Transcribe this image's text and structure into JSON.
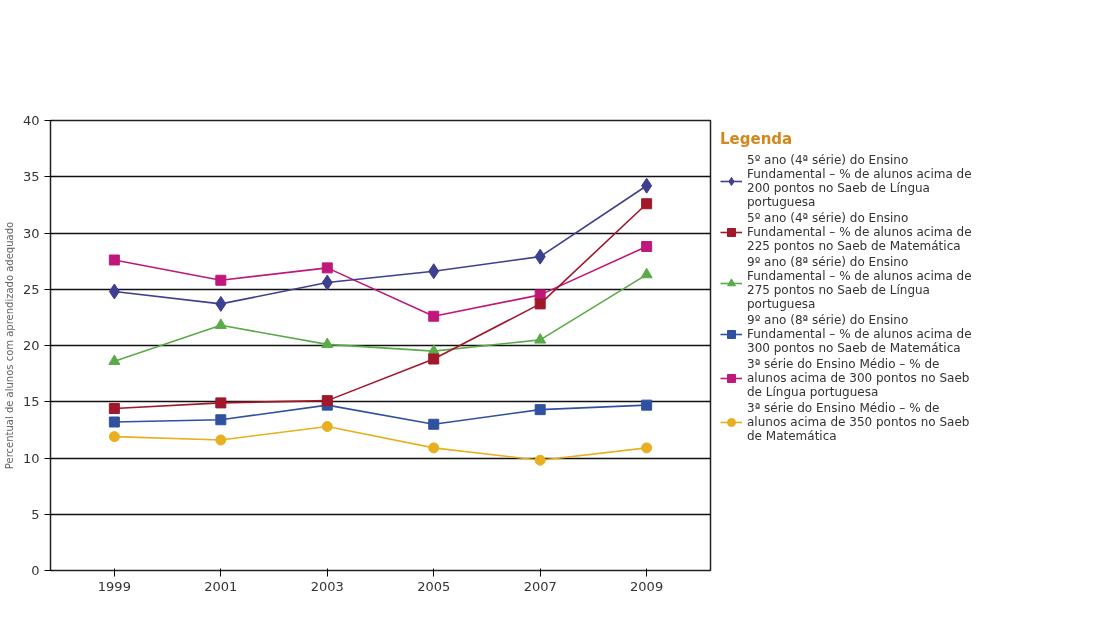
{
  "chart_data": {
    "type": "line",
    "ylabel": "Percentual de alunos com aprendizado adequado",
    "legend_title": "Legenda",
    "categories": [
      "1999",
      "2001",
      "2003",
      "2005",
      "2007",
      "2009"
    ],
    "ylim": [
      0,
      40
    ],
    "yticks": [
      0,
      5,
      10,
      15,
      20,
      25,
      30,
      35,
      40
    ],
    "grid": "y",
    "legend": "right",
    "series": [
      {
        "name": "5º ano (4ª série) do Ensino Fundamental – % de alunos acima de 200 pontos no Saeb de Língua portuguesa",
        "color": "#3f3f8f",
        "marker": "diamond",
        "values": [
          24.8,
          23.7,
          25.6,
          26.6,
          27.9,
          34.2
        ]
      },
      {
        "name": "5º ano (4ª série) do Ensino Fundamental – % de alunos acima de 225 pontos no Saeb de Matemática",
        "color": "#a0182a",
        "marker": "square",
        "values": [
          14.4,
          14.9,
          15.1,
          18.8,
          23.7,
          32.6
        ]
      },
      {
        "name": "9º ano (8ª série) do Ensino Fundamental – % de alunos acima de 275 pontos no Saeb de Língua portuguesa",
        "color": "#5aaa4a",
        "marker": "triangle",
        "values": [
          18.6,
          21.8,
          20.1,
          19.5,
          20.5,
          26.3
        ]
      },
      {
        "name": "9º ano (8ª série) do Ensino Fundamental – % de alunos acima de 300 pontos no Saeb de Matemática",
        "color": "#3050a0",
        "marker": "square",
        "values": [
          13.2,
          13.4,
          14.7,
          13.0,
          14.3,
          14.7
        ]
      },
      {
        "name": "3ª série do Ensino Médio – % de alunos acima de 300 pontos no Saeb de Língua portuguesa",
        "color": "#c0187a",
        "marker": "square",
        "values": [
          27.6,
          25.8,
          26.9,
          22.6,
          24.5,
          28.8
        ]
      },
      {
        "name": "3ª série do Ensino Médio – % de alunos acima de 350 pontos no Saeb de Matemática",
        "color": "#e8b020",
        "marker": "circle",
        "values": [
          11.9,
          11.6,
          12.8,
          10.9,
          9.8,
          10.9
        ]
      }
    ]
  }
}
